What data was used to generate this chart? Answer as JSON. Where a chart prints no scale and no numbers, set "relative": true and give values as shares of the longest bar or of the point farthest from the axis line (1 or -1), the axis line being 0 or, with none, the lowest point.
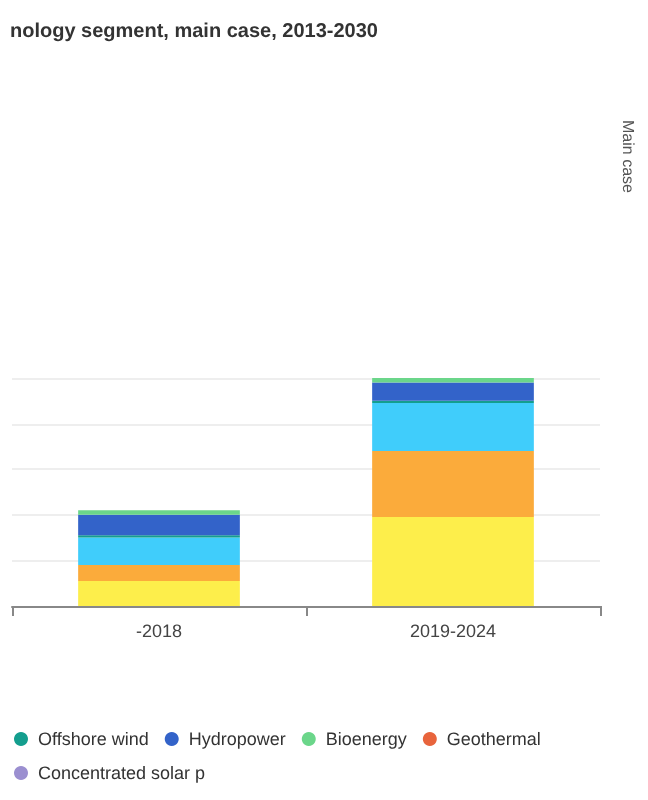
{
  "chart_data": {
    "type": "bar",
    "title": "nology segment, main case, 2013-2030",
    "categories": [
      "-2018",
      "2019-2024"
    ],
    "stacked": true,
    "relative": true,
    "grid": "y",
    "legend": "bottom",
    "annotations": [
      "Main case"
    ],
    "series": [
      {
        "color": "#fdee4b",
        "values": [
          0.11,
          0.39
        ]
      },
      {
        "color": "#fbab3b",
        "values": [
          0.07,
          0.29
        ]
      },
      {
        "color": "#40cdfb",
        "values": [
          0.12,
          0.21
        ]
      },
      {
        "name": "Offshore wind",
        "color": "#149e8e",
        "values": [
          0.01,
          0.01
        ]
      },
      {
        "name": "Hydropower",
        "color": "#3363c9",
        "values": [
          0.09,
          0.08
        ]
      },
      {
        "name": "Bioenergy",
        "color": "#6bd68a",
        "values": [
          0.02,
          0.02
        ]
      },
      {
        "name": "Geothermal",
        "color": "#e8643c",
        "values": [
          0,
          0
        ]
      },
      {
        "name": "Concentrated solar p",
        "color": "#9b8fd0",
        "values": [
          0,
          0
        ]
      }
    ]
  }
}
